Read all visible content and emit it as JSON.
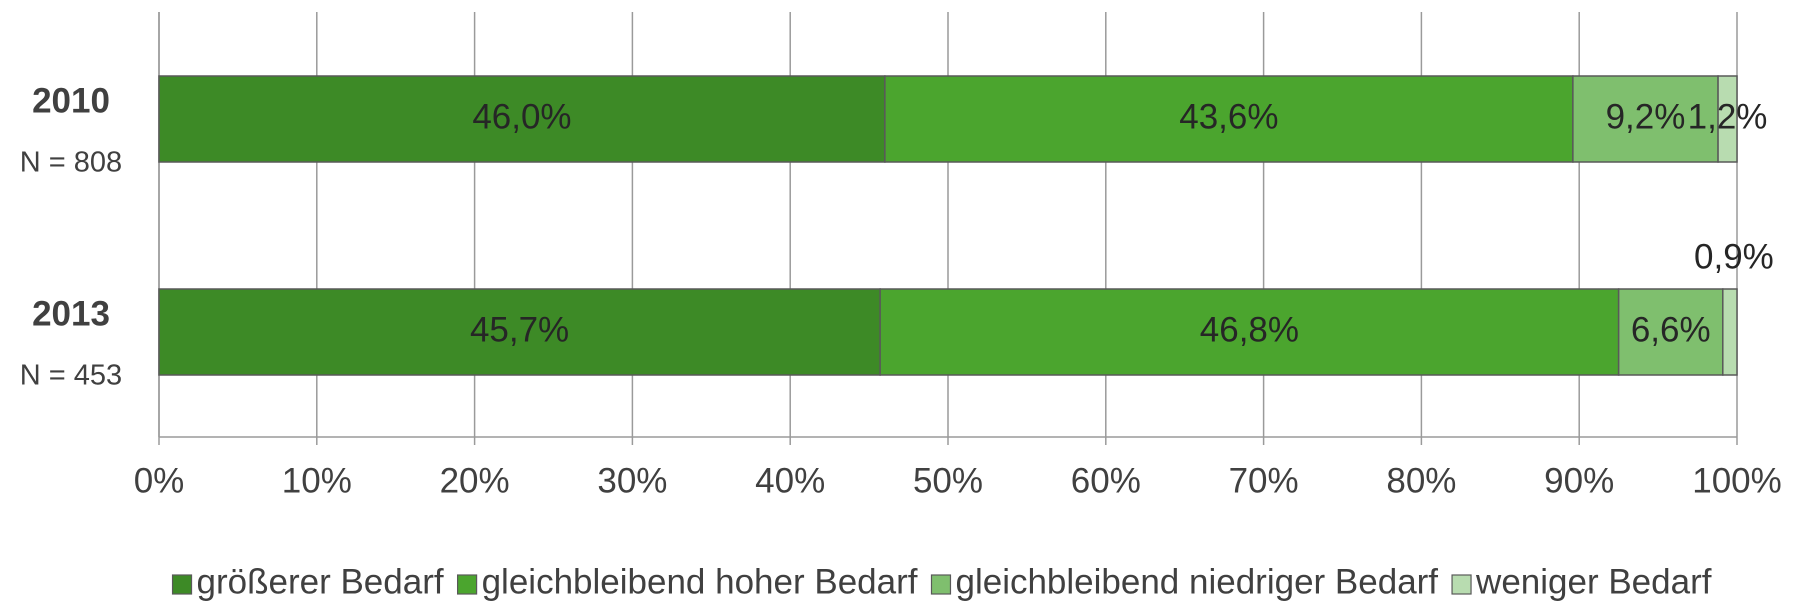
{
  "chart_data": {
    "type": "stacked_bar_horizontal",
    "categories": [
      "2010",
      "2013"
    ],
    "category_notes": [
      "N = 808",
      "N = 453"
    ],
    "series": [
      {
        "name": "größerer Bedarf",
        "color": "#3d8a26",
        "values": [
          46.0,
          45.7
        ],
        "value_labels": [
          "46,0%",
          "45,7%"
        ]
      },
      {
        "name": "gleichbleibend hoher Bedarf",
        "color": "#4ba52e",
        "values": [
          43.6,
          46.8
        ],
        "value_labels": [
          "43,6%",
          "46,8%"
        ]
      },
      {
        "name": "gleichbleibend niedriger Bedarf",
        "color": "#7fbf6e",
        "values": [
          9.2,
          6.6
        ],
        "value_labels": [
          "9,2%",
          "6,6%"
        ]
      },
      {
        "name": "weniger Bedarf",
        "color": "#b8dcb0",
        "values": [
          1.2,
          0.9
        ],
        "value_labels": [
          "1,2%",
          "0,9%"
        ]
      }
    ],
    "xlim": [
      0,
      100
    ],
    "xticks": [
      {
        "value": 0,
        "label": "0%"
      },
      {
        "value": 10,
        "label": "10%"
      },
      {
        "value": 20,
        "label": "20%"
      },
      {
        "value": 30,
        "label": "30%"
      },
      {
        "value": 40,
        "label": "40%"
      },
      {
        "value": 50,
        "label": "50%"
      },
      {
        "value": 60,
        "label": "60%"
      },
      {
        "value": 70,
        "label": "70%"
      },
      {
        "value": 80,
        "label": "80%"
      },
      {
        "value": 90,
        "label": "90%"
      },
      {
        "value": 100,
        "label": "100%"
      }
    ],
    "grid": true,
    "legend": "bottom"
  }
}
